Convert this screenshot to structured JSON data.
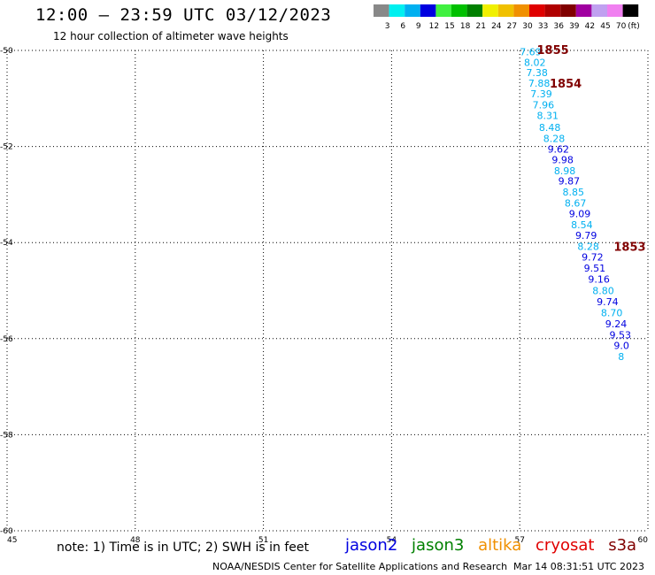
{
  "header": {
    "title": "12:00 – 23:59 UTC 03/12/2023",
    "subtitle": "12 hour collection of altimeter wave heights"
  },
  "scale": {
    "unit": "(ft)",
    "labels": [
      "3",
      "6",
      "9",
      "12",
      "15",
      "18",
      "21",
      "24",
      "27",
      "30",
      "33",
      "36",
      "39",
      "42",
      "45",
      "70"
    ],
    "colors": [
      "#888888",
      "#00f0f0",
      "#00b0f0",
      "#0000e0",
      "#40f040",
      "#00c000",
      "#008000",
      "#f0f000",
      "#f0c000",
      "#f09000",
      "#e00000",
      "#b00000",
      "#800000",
      "#a000a0",
      "#c0a0f0",
      "#f080f0",
      "#000000"
    ]
  },
  "axes": {
    "x_ticks": [
      "45",
      "48",
      "51",
      "54",
      "57",
      "60"
    ],
    "y_ticks": [
      "-50",
      "-52",
      "-54",
      "-56",
      "-58",
      "-60"
    ]
  },
  "chart_data": {
    "type": "scatter",
    "xlim": [
      45,
      60
    ],
    "ylim": [
      -60,
      -50
    ],
    "grid": true,
    "points": [
      {
        "x": 57.0,
        "y": -50.03,
        "label": "7.69",
        "color": "#00b0f0"
      },
      {
        "x": 57.1,
        "y": -50.25,
        "label": "8.02",
        "color": "#00b0f0"
      },
      {
        "x": 57.15,
        "y": -50.46,
        "label": "7.38",
        "color": "#00b0f0"
      },
      {
        "x": 57.2,
        "y": -50.68,
        "label": "7.88",
        "color": "#00b0f0"
      },
      {
        "x": 57.25,
        "y": -50.9,
        "label": "7.39",
        "color": "#00b0f0"
      },
      {
        "x": 57.3,
        "y": -51.13,
        "label": "7.96",
        "color": "#00b0f0"
      },
      {
        "x": 57.4,
        "y": -51.35,
        "label": "8.31",
        "color": "#00b0f0"
      },
      {
        "x": 57.45,
        "y": -51.6,
        "label": "8.48",
        "color": "#00b0f0"
      },
      {
        "x": 57.55,
        "y": -51.83,
        "label": "8.28",
        "color": "#00b0f0"
      },
      {
        "x": 57.65,
        "y": -52.05,
        "label": "9.62",
        "color": "#0000e0"
      },
      {
        "x": 57.75,
        "y": -52.27,
        "label": "9.98",
        "color": "#0000e0"
      },
      {
        "x": 57.8,
        "y": -52.5,
        "label": "8.98",
        "color": "#00b0f0"
      },
      {
        "x": 57.9,
        "y": -52.72,
        "label": "9.87",
        "color": "#0000e0"
      },
      {
        "x": 58.0,
        "y": -52.95,
        "label": "8.85",
        "color": "#00b0f0"
      },
      {
        "x": 58.05,
        "y": -53.18,
        "label": "8.67",
        "color": "#00b0f0"
      },
      {
        "x": 58.15,
        "y": -53.4,
        "label": "9.09",
        "color": "#0000e0"
      },
      {
        "x": 58.2,
        "y": -53.63,
        "label": "8.54",
        "color": "#00b0f0"
      },
      {
        "x": 58.3,
        "y": -53.85,
        "label": "9.79",
        "color": "#0000e0"
      },
      {
        "x": 58.35,
        "y": -54.08,
        "label": "8.28",
        "color": "#00b0f0"
      },
      {
        "x": 58.45,
        "y": -54.3,
        "label": "9.72",
        "color": "#0000e0"
      },
      {
        "x": 58.5,
        "y": -54.53,
        "label": "9.51",
        "color": "#0000e0"
      },
      {
        "x": 58.6,
        "y": -54.76,
        "label": "9.16",
        "color": "#0000e0"
      },
      {
        "x": 58.7,
        "y": -55.0,
        "label": "8.80",
        "color": "#00b0f0"
      },
      {
        "x": 58.8,
        "y": -55.23,
        "label": "9.74",
        "color": "#0000e0"
      },
      {
        "x": 58.9,
        "y": -55.46,
        "label": "8.70",
        "color": "#00b0f0"
      },
      {
        "x": 59.0,
        "y": -55.69,
        "label": "9.24",
        "color": "#0000e0"
      },
      {
        "x": 59.1,
        "y": -55.92,
        "label": "9.53",
        "color": "#0000e0"
      },
      {
        "x": 59.2,
        "y": -56.14,
        "label": "9.0",
        "color": "#0000e0"
      },
      {
        "x": 59.3,
        "y": -56.37,
        "label": "8",
        "color": "#00b0f0"
      }
    ],
    "time_labels": [
      {
        "x": 57.4,
        "y": -50.0,
        "label": "1855"
      },
      {
        "x": 57.7,
        "y": -50.7,
        "label": "1854"
      },
      {
        "x": 59.2,
        "y": -54.1,
        "label": "1853"
      }
    ]
  },
  "note": "note: 1) Time is in UTC; 2) SWH is in feet",
  "legend": [
    {
      "label": "jason2",
      "color": "#0000e0"
    },
    {
      "label": "jason3",
      "color": "#008000"
    },
    {
      "label": "altika",
      "color": "#f09000"
    },
    {
      "label": "cryosat",
      "color": "#e00000"
    },
    {
      "label": "s3a",
      "color": "#800000"
    }
  ],
  "footer": {
    "credit": "NOAA/NESDIS Center for Satellite Applications and Research",
    "timestamp": "Mar 14 08:31:51 UTC 2023"
  }
}
